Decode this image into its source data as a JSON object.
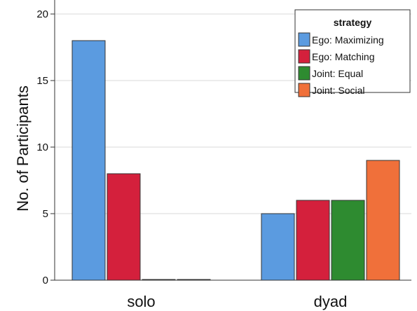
{
  "chart_data": {
    "type": "bar",
    "categories": [
      "solo",
      "dyad"
    ],
    "ylabel": "No. of Participants",
    "ylim": [
      0,
      20
    ],
    "yticks": [
      0,
      5,
      10,
      15,
      20
    ],
    "grid": true,
    "legend_title": "strategy",
    "legend_position": "top-right",
    "series": [
      {
        "name": "Ego: Maximizing",
        "color": "#5b9be0",
        "values": [
          18,
          5
        ]
      },
      {
        "name": "Ego: Matching",
        "color": "#d4203c",
        "values": [
          8,
          6
        ]
      },
      {
        "name": "Joint: Equal",
        "color": "#2e8b30",
        "values": [
          0,
          6
        ]
      },
      {
        "name": "Joint: Social",
        "color": "#f0703a",
        "values": [
          0,
          9
        ]
      }
    ]
  }
}
